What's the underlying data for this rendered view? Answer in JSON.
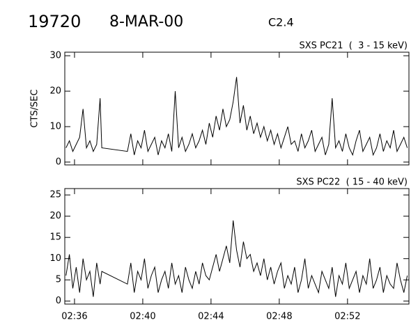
{
  "header": {
    "id": "19720",
    "date": "8-MAR-00",
    "class": "C2.4"
  },
  "chart_data": [
    {
      "type": "line",
      "title": "SXS PC21  (  3 - 15 keV)",
      "y_label": "CTS/SEC",
      "x": [
        155.5,
        155.7,
        155.9,
        156.1,
        156.3,
        156.5,
        156.7,
        156.9,
        157.1,
        157.3,
        157.5,
        157.6,
        159.1,
        159.3,
        159.5,
        159.7,
        159.9,
        160.1,
        160.3,
        160.5,
        160.7,
        160.9,
        161.1,
        161.3,
        161.5,
        161.7,
        161.9,
        162.1,
        162.3,
        162.5,
        162.7,
        162.9,
        163.1,
        163.3,
        163.5,
        163.7,
        163.9,
        164.1,
        164.3,
        164.5,
        164.7,
        164.9,
        165.1,
        165.3,
        165.5,
        165.7,
        165.9,
        166.1,
        166.3,
        166.5,
        166.7,
        166.9,
        167.1,
        167.3,
        167.5,
        167.7,
        167.9,
        168.1,
        168.3,
        168.5,
        168.7,
        168.9,
        169.1,
        169.3,
        169.5,
        169.7,
        169.9,
        170.1,
        170.3,
        170.5,
        170.7,
        170.9,
        171.1,
        171.3,
        171.5,
        171.7,
        171.9,
        172.1,
        172.3,
        172.5,
        172.7,
        172.9,
        173.1,
        173.3,
        173.5,
        173.7,
        173.9,
        174.1,
        174.3,
        174.5,
        174.7,
        174.9,
        175.1,
        175.3,
        175.5
      ],
      "series": [
        {
          "color": "#000000",
          "values": [
            4,
            6,
            3,
            5,
            7,
            15,
            4,
            6,
            3,
            5,
            18,
            4,
            3,
            8,
            2,
            6,
            4,
            9,
            3,
            5,
            7,
            2,
            6,
            4,
            8,
            3,
            20,
            4,
            7,
            3,
            5,
            8,
            4,
            6,
            9,
            5,
            11,
            7,
            13,
            9,
            15,
            10,
            12,
            17,
            24,
            11,
            16,
            9,
            13,
            8,
            11,
            7,
            10,
            6,
            9,
            5,
            8,
            4,
            7,
            10,
            5,
            6,
            3,
            8,
            4,
            6,
            9,
            3,
            5,
            7,
            2,
            5,
            18,
            4,
            6,
            3,
            8,
            4,
            2,
            6,
            9,
            3,
            5,
            7,
            2,
            4,
            8,
            3,
            6,
            4,
            9,
            3,
            5,
            7,
            4
          ]
        }
      ],
      "xlim": [
        155.43,
        175.6
      ],
      "xticks": [
        156,
        160,
        164,
        168,
        172
      ],
      "ylim": [
        -0.8,
        31
      ],
      "yticks": [
        0,
        10,
        20,
        30
      ]
    },
    {
      "type": "line",
      "title": "SXS PC22  ( 15 - 40 keV)",
      "x": [
        155.5,
        155.7,
        155.9,
        156.1,
        156.3,
        156.5,
        156.7,
        156.9,
        157.1,
        157.3,
        157.5,
        157.6,
        159.1,
        159.3,
        159.5,
        159.7,
        159.9,
        160.1,
        160.3,
        160.5,
        160.7,
        160.9,
        161.1,
        161.3,
        161.5,
        161.7,
        161.9,
        162.1,
        162.3,
        162.5,
        162.7,
        162.9,
        163.1,
        163.3,
        163.5,
        163.7,
        163.9,
        164.1,
        164.3,
        164.5,
        164.7,
        164.9,
        165.1,
        165.3,
        165.5,
        165.7,
        165.9,
        166.1,
        166.3,
        166.5,
        166.7,
        166.9,
        167.1,
        167.3,
        167.5,
        167.7,
        167.9,
        168.1,
        168.3,
        168.5,
        168.7,
        168.9,
        169.1,
        169.3,
        169.5,
        169.7,
        169.9,
        170.1,
        170.3,
        170.5,
        170.7,
        170.9,
        171.1,
        171.3,
        171.5,
        171.7,
        171.9,
        172.1,
        172.3,
        172.5,
        172.7,
        172.9,
        173.1,
        173.3,
        173.5,
        173.7,
        173.9,
        174.1,
        174.3,
        174.5,
        174.7,
        174.9,
        175.1,
        175.3,
        175.5
      ],
      "series": [
        {
          "color": "#000000",
          "values": [
            6,
            11,
            3,
            8,
            2,
            10,
            5,
            7,
            1,
            9,
            4,
            7,
            4,
            9,
            2,
            7,
            5,
            10,
            3,
            6,
            8,
            2,
            5,
            7,
            3,
            9,
            4,
            6,
            2,
            8,
            5,
            3,
            7,
            4,
            9,
            6,
            5,
            8,
            11,
            7,
            10,
            13,
            9,
            19,
            12,
            8,
            14,
            10,
            11,
            7,
            9,
            6,
            10,
            5,
            8,
            4,
            7,
            9,
            3,
            6,
            4,
            8,
            2,
            5,
            10,
            3,
            6,
            4,
            2,
            7,
            5,
            3,
            8,
            1,
            6,
            4,
            9,
            3,
            5,
            7,
            2,
            6,
            4,
            10,
            3,
            5,
            8,
            2,
            6,
            4,
            3,
            9,
            5,
            2,
            6
          ]
        }
      ],
      "xlim": [
        155.43,
        175.6
      ],
      "xticks": [
        {
          "value": 156,
          "label": "02:36"
        },
        {
          "value": 160,
          "label": "02:40"
        },
        {
          "value": 164,
          "label": "02:44"
        },
        {
          "value": 168,
          "label": "02:48"
        },
        {
          "value": 172,
          "label": "02:52"
        }
      ],
      "ylim": [
        -0.7,
        26.5
      ],
      "yticks": [
        0,
        5,
        10,
        15,
        20,
        25
      ]
    }
  ]
}
